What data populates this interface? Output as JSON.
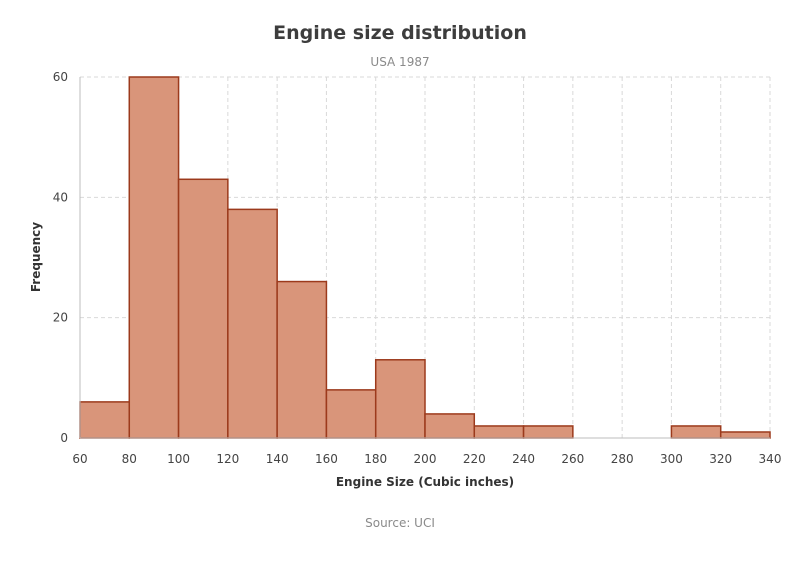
{
  "chart_data": {
    "type": "bar",
    "title": "Engine size distribution",
    "subtitle": "USA 1987",
    "xlabel": "Engine Size (Cubic inches)",
    "ylabel": "Frequency",
    "source": "Source: UCI",
    "xlim": [
      60,
      340
    ],
    "ylim": [
      0,
      60
    ],
    "x_ticks": [
      60,
      80,
      100,
      120,
      140,
      160,
      180,
      200,
      220,
      240,
      260,
      280,
      300,
      320,
      340
    ],
    "y_ticks": [
      0,
      20,
      40,
      60
    ],
    "bins": [
      {
        "from": 60,
        "to": 80,
        "value": 6
      },
      {
        "from": 80,
        "to": 100,
        "value": 60
      },
      {
        "from": 100,
        "to": 120,
        "value": 43
      },
      {
        "from": 120,
        "to": 140,
        "value": 38
      },
      {
        "from": 140,
        "to": 160,
        "value": 26
      },
      {
        "from": 160,
        "to": 180,
        "value": 8
      },
      {
        "from": 180,
        "to": 200,
        "value": 13
      },
      {
        "from": 200,
        "to": 220,
        "value": 4
      },
      {
        "from": 220,
        "to": 240,
        "value": 2
      },
      {
        "from": 240,
        "to": 260,
        "value": 2
      },
      {
        "from": 260,
        "to": 280,
        "value": 0
      },
      {
        "from": 280,
        "to": 300,
        "value": 0
      },
      {
        "from": 300,
        "to": 320,
        "value": 2
      },
      {
        "from": 320,
        "to": 340,
        "value": 1
      }
    ],
    "grid": true,
    "colors": {
      "bar_fill": "#d9957a",
      "bar_stroke": "#9c3a1c"
    }
  }
}
